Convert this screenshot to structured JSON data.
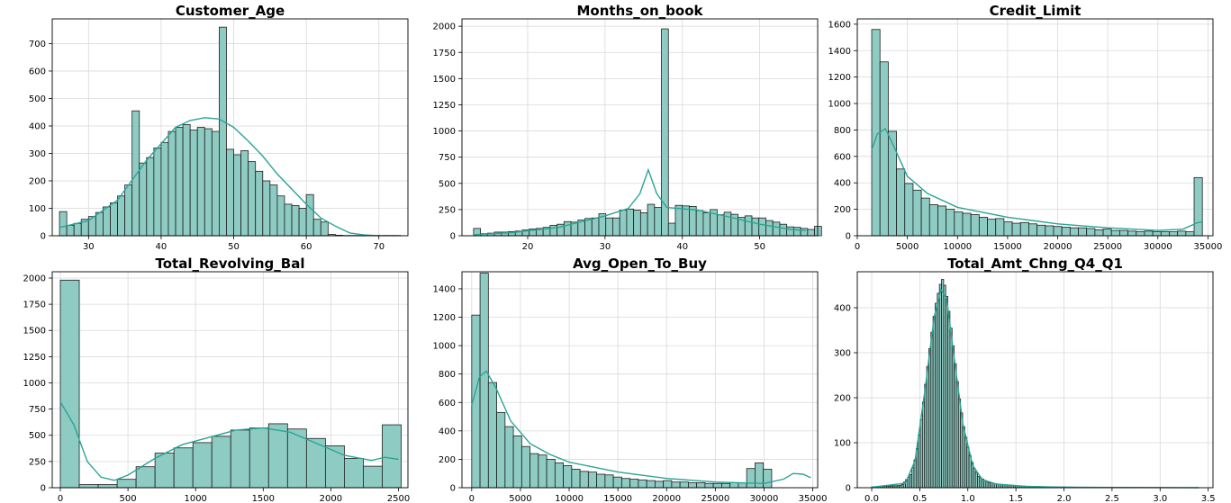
{
  "chart_data": [
    {
      "type": "bar",
      "title": "Customer_Age",
      "xlim": [
        25,
        74
      ],
      "ylim": [
        0,
        790
      ],
      "xticks": [
        30,
        40,
        50,
        60,
        70
      ],
      "yticks": [
        0,
        100,
        200,
        300,
        400,
        500,
        600,
        700
      ],
      "bins": {
        "start": 26,
        "width": 1.0
      },
      "values": [
        88,
        38,
        45,
        60,
        70,
        85,
        105,
        120,
        145,
        185,
        455,
        265,
        285,
        320,
        340,
        380,
        395,
        405,
        385,
        395,
        390,
        380,
        760,
        315,
        295,
        310,
        270,
        235,
        200,
        185,
        145,
        115,
        110,
        100,
        150,
        60,
        50,
        5,
        2,
        1,
        1,
        1,
        1,
        1,
        1,
        1,
        1
      ],
      "kde": [
        [
          26,
          30
        ],
        [
          30,
          55
        ],
        [
          34,
          130
        ],
        [
          38,
          275
        ],
        [
          42,
          395
        ],
        [
          44,
          420
        ],
        [
          46,
          430
        ],
        [
          48,
          425
        ],
        [
          50,
          395
        ],
        [
          52,
          345
        ],
        [
          54,
          290
        ],
        [
          56,
          225
        ],
        [
          58,
          170
        ],
        [
          60,
          115
        ],
        [
          62,
          65
        ],
        [
          64,
          35
        ],
        [
          66,
          10
        ],
        [
          68,
          3
        ],
        [
          70,
          0
        ]
      ],
      "grid": true
    },
    {
      "type": "bar",
      "title": "Months_on_book",
      "xlim": [
        11.5,
        57.5
      ],
      "ylim": [
        0,
        2070
      ],
      "xticks": [
        20,
        30,
        40,
        50
      ],
      "yticks": [
        0,
        250,
        500,
        750,
        1000,
        1250,
        1500,
        1750,
        2000
      ],
      "bins": {
        "start": 13,
        "width": 0.9
      },
      "values": [
        70,
        20,
        25,
        35,
        35,
        40,
        45,
        55,
        65,
        70,
        80,
        100,
        110,
        135,
        130,
        150,
        165,
        170,
        210,
        170,
        170,
        245,
        255,
        245,
        220,
        300,
        270,
        1975,
        120,
        290,
        285,
        280,
        240,
        220,
        250,
        200,
        225,
        205,
        175,
        190,
        170,
        170,
        145,
        130,
        110,
        85,
        80,
        70,
        60,
        90
      ],
      "kde": [
        [
          13,
          10
        ],
        [
          18,
          30
        ],
        [
          24,
          80
        ],
        [
          30,
          190
        ],
        [
          33,
          260
        ],
        [
          34.5,
          400
        ],
        [
          35.6,
          630
        ],
        [
          36.7,
          400
        ],
        [
          38,
          270
        ],
        [
          42,
          245
        ],
        [
          46,
          180
        ],
        [
          50,
          110
        ],
        [
          54,
          60
        ],
        [
          56,
          50
        ]
      ],
      "grid": true
    },
    {
      "type": "bar",
      "title": "Credit_Limit",
      "xlim": [
        0,
        35500
      ],
      "ylim": [
        0,
        1640
      ],
      "xticks": [
        0,
        5000,
        10000,
        15000,
        20000,
        25000,
        30000,
        35000
      ],
      "yticks": [
        0,
        200,
        400,
        600,
        800,
        1000,
        1200,
        1400,
        1600
      ],
      "bins": {
        "start": 1440,
        "width": 825
      },
      "values": [
        1560,
        1315,
        790,
        505,
        395,
        345,
        285,
        235,
        225,
        200,
        180,
        170,
        160,
        140,
        125,
        130,
        105,
        95,
        100,
        90,
        80,
        75,
        70,
        65,
        60,
        60,
        55,
        45,
        50,
        40,
        40,
        35,
        30,
        35,
        30,
        30,
        30,
        35,
        30,
        440
      ],
      "kde": [
        [
          1440,
          650
        ],
        [
          2000,
          770
        ],
        [
          2800,
          810
        ],
        [
          3500,
          700
        ],
        [
          5000,
          450
        ],
        [
          7000,
          320
        ],
        [
          10000,
          215
        ],
        [
          15000,
          140
        ],
        [
          20000,
          90
        ],
        [
          25000,
          60
        ],
        [
          30000,
          40
        ],
        [
          32500,
          50
        ],
        [
          34000,
          100
        ],
        [
          34500,
          105
        ]
      ],
      "grid": true
    },
    {
      "type": "bar",
      "title": "Total_Revolving_Bal",
      "xlim": [
        -60,
        2570
      ],
      "ylim": [
        0,
        2060
      ],
      "xticks": [
        0,
        500,
        1000,
        1500,
        2000,
        2500
      ],
      "yticks": [
        0,
        250,
        500,
        750,
        1000,
        1250,
        1500,
        1750,
        2000
      ],
      "bins": {
        "start": 0,
        "width": 140
      },
      "values": [
        1980,
        30,
        30,
        80,
        200,
        330,
        380,
        430,
        490,
        550,
        570,
        610,
        560,
        470,
        400,
        280,
        205,
        600
      ],
      "kde": [
        [
          0,
          820
        ],
        [
          100,
          600
        ],
        [
          200,
          250
        ],
        [
          300,
          100
        ],
        [
          400,
          70
        ],
        [
          500,
          120
        ],
        [
          700,
          280
        ],
        [
          900,
          410
        ],
        [
          1100,
          480
        ],
        [
          1300,
          550
        ],
        [
          1500,
          570
        ],
        [
          1700,
          530
        ],
        [
          1900,
          420
        ],
        [
          2100,
          310
        ],
        [
          2300,
          260
        ],
        [
          2400,
          290
        ],
        [
          2500,
          270
        ]
      ],
      "grid": true
    },
    {
      "type": "bar",
      "title": "Avg_Open_To_Buy",
      "xlim": [
        -1000,
        35500
      ],
      "ylim": [
        0,
        1520
      ],
      "xticks": [
        0,
        5000,
        10000,
        15000,
        20000,
        25000,
        30000,
        35000
      ],
      "yticks": [
        0,
        200,
        400,
        600,
        800,
        1000,
        1200,
        1400
      ],
      "bins": {
        "start": 0,
        "width": 855
      },
      "values": [
        1215,
        1510,
        740,
        530,
        430,
        365,
        290,
        240,
        230,
        200,
        175,
        155,
        130,
        115,
        110,
        95,
        90,
        75,
        65,
        60,
        55,
        50,
        45,
        50,
        40,
        40,
        35,
        35,
        30,
        30,
        30,
        35,
        35,
        135,
        175,
        130
      ],
      "kde": [
        [
          0,
          580
        ],
        [
          800,
          780
        ],
        [
          1500,
          820
        ],
        [
          2500,
          700
        ],
        [
          4000,
          470
        ],
        [
          6000,
          310
        ],
        [
          8000,
          235
        ],
        [
          10000,
          180
        ],
        [
          15000,
          110
        ],
        [
          20000,
          65
        ],
        [
          25000,
          40
        ],
        [
          30000,
          30
        ],
        [
          32000,
          60
        ],
        [
          33000,
          100
        ],
        [
          34000,
          95
        ],
        [
          34800,
          70
        ]
      ],
      "grid": true
    },
    {
      "type": "bar",
      "title": "Total_Amt_Chng_Q4_Q1",
      "xlim": [
        -0.15,
        3.55
      ],
      "ylim": [
        0,
        480
      ],
      "xticks": [
        0.0,
        0.5,
        1.0,
        1.5,
        2.0,
        2.5,
        3.0,
        3.5
      ],
      "xtick_labels": [
        "0.0",
        "0.5",
        "1.0",
        "1.5",
        "2.0",
        "2.5",
        "3.0",
        "3.5"
      ],
      "yticks": [
        0,
        100,
        200,
        300,
        400
      ],
      "curve": [
        [
          0.0,
          2
        ],
        [
          0.3,
          5
        ],
        [
          0.4,
          30
        ],
        [
          0.45,
          70
        ],
        [
          0.5,
          140
        ],
        [
          0.55,
          230
        ],
        [
          0.6,
          320
        ],
        [
          0.65,
          400
        ],
        [
          0.7,
          450
        ],
        [
          0.73,
          465
        ],
        [
          0.76,
          440
        ],
        [
          0.8,
          380
        ],
        [
          0.85,
          290
        ],
        [
          0.9,
          200
        ],
        [
          0.95,
          130
        ],
        [
          1.0,
          80
        ],
        [
          1.05,
          45
        ],
        [
          1.1,
          25
        ],
        [
          1.2,
          12
        ],
        [
          1.3,
          8
        ],
        [
          1.5,
          4
        ],
        [
          1.8,
          2
        ],
        [
          2.2,
          1
        ],
        [
          3.4,
          0
        ]
      ],
      "kde": [
        [
          0.0,
          1
        ],
        [
          0.35,
          10
        ],
        [
          0.45,
          60
        ],
        [
          0.55,
          210
        ],
        [
          0.65,
          380
        ],
        [
          0.72,
          440
        ],
        [
          0.78,
          420
        ],
        [
          0.85,
          300
        ],
        [
          0.95,
          140
        ],
        [
          1.05,
          50
        ],
        [
          1.15,
          18
        ],
        [
          1.3,
          8
        ],
        [
          1.6,
          3
        ],
        [
          2.0,
          1
        ],
        [
          3.4,
          0
        ]
      ],
      "grid": true
    }
  ]
}
